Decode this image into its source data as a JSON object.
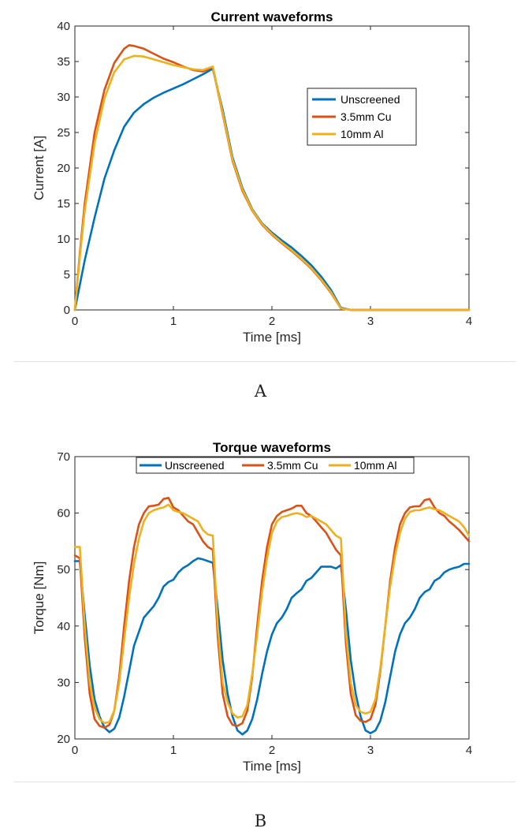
{
  "chart_data": [
    {
      "type": "line",
      "title": "Current waveforms",
      "xlabel": "Time [ms]",
      "ylabel": "Current [A]",
      "xlim": [
        0,
        4
      ],
      "ylim": [
        0,
        40
      ],
      "xticks": [
        0,
        1,
        2,
        3,
        4
      ],
      "yticks": [
        0,
        5,
        10,
        15,
        20,
        25,
        30,
        35,
        40
      ],
      "legend_position": "right",
      "caption": "A",
      "series": [
        {
          "name": "Unscreened",
          "color": "#0072BD",
          "x": [
            0,
            0.1,
            0.2,
            0.3,
            0.4,
            0.5,
            0.6,
            0.7,
            0.8,
            0.9,
            1.0,
            1.1,
            1.2,
            1.3,
            1.4,
            1.5,
            1.6,
            1.7,
            1.8,
            1.9,
            2.0,
            2.1,
            2.2,
            2.3,
            2.4,
            2.5,
            2.6,
            2.7,
            2.8,
            3.0,
            3.5,
            4.0
          ],
          "y": [
            0,
            7,
            13,
            18.5,
            22.5,
            25.8,
            27.8,
            29.0,
            29.9,
            30.6,
            31.2,
            31.8,
            32.5,
            33.2,
            34.0,
            28.2,
            21.5,
            17.2,
            14.2,
            12.2,
            10.9,
            9.8,
            8.8,
            7.6,
            6.3,
            4.7,
            2.8,
            0.3,
            0,
            0,
            0,
            0
          ]
        },
        {
          "name": "3.5mm Cu",
          "color": "#D95319",
          "x": [
            0,
            0.05,
            0.1,
            0.2,
            0.3,
            0.4,
            0.5,
            0.55,
            0.6,
            0.7,
            0.8,
            0.9,
            1.0,
            1.1,
            1.2,
            1.3,
            1.4,
            1.5,
            1.6,
            1.7,
            1.8,
            1.9,
            2.0,
            2.1,
            2.2,
            2.3,
            2.4,
            2.5,
            2.6,
            2.7,
            2.8,
            3.0,
            3.5,
            4.0
          ],
          "y": [
            0,
            8,
            15,
            25.0,
            31.0,
            34.8,
            36.8,
            37.3,
            37.2,
            36.8,
            36.1,
            35.4,
            34.9,
            34.3,
            33.8,
            33.6,
            34.2,
            27.6,
            21.0,
            16.8,
            14.0,
            12.0,
            10.6,
            9.4,
            8.3,
            7.1,
            5.8,
            4.2,
            2.4,
            0.2,
            0,
            0,
            0,
            0
          ]
        },
        {
          "name": "10mm Al",
          "color": "#EDB120",
          "x": [
            0,
            0.05,
            0.1,
            0.2,
            0.3,
            0.4,
            0.5,
            0.6,
            0.7,
            0.8,
            0.9,
            1.0,
            1.1,
            1.2,
            1.3,
            1.4,
            1.5,
            1.6,
            1.7,
            1.8,
            1.9,
            2.0,
            2.1,
            2.2,
            2.3,
            2.4,
            2.5,
            2.6,
            2.7,
            2.8,
            3.0,
            3.5,
            4.0
          ],
          "y": [
            0,
            7.5,
            14,
            23.5,
            29.8,
            33.5,
            35.3,
            35.8,
            35.7,
            35.3,
            34.9,
            34.5,
            34.2,
            33.9,
            33.8,
            34.3,
            27.8,
            21.2,
            17.0,
            14.1,
            12.1,
            10.7,
            9.5,
            8.4,
            7.2,
            5.9,
            4.3,
            2.5,
            0.2,
            0,
            0,
            0,
            0
          ]
        }
      ]
    },
    {
      "type": "line",
      "title": "Torque waveforms",
      "xlabel": "Time [ms]",
      "ylabel": "Torque [Nm]",
      "xlim": [
        0,
        4
      ],
      "ylim": [
        20,
        70
      ],
      "xticks": [
        0,
        1,
        2,
        3,
        4
      ],
      "yticks": [
        20,
        30,
        40,
        50,
        60,
        70
      ],
      "legend_position": "top",
      "caption": "B",
      "series": [
        {
          "name": "Unscreened",
          "color": "#0072BD",
          "x": [
            0,
            0.05,
            0.1,
            0.15,
            0.2,
            0.25,
            0.3,
            0.35,
            0.4,
            0.45,
            0.5,
            0.55,
            0.6,
            0.65,
            0.7,
            0.75,
            0.8,
            0.85,
            0.9,
            0.95,
            1.0,
            1.05,
            1.1,
            1.15,
            1.2,
            1.25,
            1.3,
            1.35,
            1.4,
            1.45,
            1.5,
            1.55,
            1.6,
            1.65,
            1.7,
            1.75,
            1.8,
            1.85,
            1.9,
            1.95,
            2.0,
            2.05,
            2.1,
            2.15,
            2.2,
            2.25,
            2.3,
            2.35,
            2.4,
            2.45,
            2.5,
            2.55,
            2.6,
            2.65,
            2.7,
            2.75,
            2.8,
            2.85,
            2.9,
            2.95,
            3.0,
            3.05,
            3.1,
            3.15,
            3.2,
            3.25,
            3.3,
            3.35,
            3.4,
            3.45,
            3.5,
            3.55,
            3.6,
            3.65,
            3.7,
            3.75,
            3.8,
            3.85,
            3.9,
            3.95,
            4.0
          ],
          "y": [
            51.5,
            51.5,
            42,
            33,
            27,
            24,
            22,
            21.2,
            21.8,
            23.8,
            27.5,
            32,
            36.5,
            39,
            41.5,
            42.5,
            43.5,
            45,
            47,
            47.8,
            48.2,
            49.5,
            50.3,
            50.8,
            51.5,
            52,
            51.8,
            51.5,
            51.2,
            43,
            34,
            28,
            24,
            21.5,
            20.8,
            21.5,
            23.5,
            27,
            31.5,
            35.5,
            38.5,
            40.5,
            41.5,
            43,
            45,
            45.8,
            46.5,
            48,
            48.5,
            49.5,
            50.5,
            50.5,
            50.5,
            50.2,
            50.8,
            43,
            34,
            28,
            24,
            21.5,
            21,
            21.5,
            23.2,
            26.5,
            31,
            35.5,
            38.5,
            40.5,
            41.5,
            43,
            45,
            46,
            46.5,
            48,
            48.5,
            49.5,
            50,
            50.3,
            50.5,
            51,
            51
          ]
        },
        {
          "name": "3.5mm Cu",
          "color": "#D95319",
          "x": [
            0,
            0.05,
            0.1,
            0.15,
            0.2,
            0.25,
            0.3,
            0.35,
            0.4,
            0.45,
            0.5,
            0.55,
            0.6,
            0.65,
            0.7,
            0.75,
            0.8,
            0.85,
            0.9,
            0.95,
            1.0,
            1.05,
            1.1,
            1.15,
            1.2,
            1.25,
            1.3,
            1.35,
            1.4,
            1.45,
            1.5,
            1.55,
            1.6,
            1.65,
            1.7,
            1.75,
            1.8,
            1.85,
            1.9,
            1.95,
            2.0,
            2.05,
            2.1,
            2.15,
            2.2,
            2.25,
            2.3,
            2.35,
            2.4,
            2.45,
            2.5,
            2.55,
            2.6,
            2.65,
            2.7,
            2.75,
            2.8,
            2.85,
            2.9,
            2.95,
            3.0,
            3.05,
            3.1,
            3.15,
            3.2,
            3.25,
            3.3,
            3.35,
            3.4,
            3.45,
            3.5,
            3.55,
            3.6,
            3.65,
            3.7,
            3.75,
            3.8,
            3.85,
            3.9,
            3.95,
            4.0
          ],
          "y": [
            52.5,
            52,
            38,
            28,
            23.5,
            22.3,
            22,
            22.5,
            25,
            31,
            40,
            48,
            54,
            58,
            60,
            61.2,
            61.3,
            61.5,
            62.5,
            62.7,
            61,
            60.5,
            59.5,
            58.5,
            58,
            56.5,
            55,
            54,
            53.5,
            38,
            28,
            24,
            22.5,
            22.3,
            22.8,
            25,
            31,
            40,
            48,
            54,
            58,
            59.5,
            60.2,
            60.5,
            60.8,
            61.3,
            61.3,
            60,
            59.5,
            58.5,
            57.5,
            56.5,
            55,
            53.5,
            52.5,
            37,
            28,
            24.2,
            23.2,
            23,
            23.5,
            26,
            32,
            40,
            48,
            54,
            58,
            60,
            61,
            61.2,
            61.2,
            62.3,
            62.5,
            61,
            60,
            59.5,
            58.5,
            57.8,
            57,
            56,
            55
          ]
        },
        {
          "name": "10mm Al",
          "color": "#EDB120",
          "x": [
            0,
            0.05,
            0.1,
            0.15,
            0.2,
            0.25,
            0.3,
            0.35,
            0.4,
            0.45,
            0.5,
            0.55,
            0.6,
            0.65,
            0.7,
            0.75,
            0.8,
            0.85,
            0.9,
            0.95,
            1.0,
            1.05,
            1.1,
            1.15,
            1.2,
            1.25,
            1.3,
            1.35,
            1.4,
            1.45,
            1.5,
            1.55,
            1.6,
            1.65,
            1.7,
            1.75,
            1.8,
            1.85,
            1.9,
            1.95,
            2.0,
            2.05,
            2.1,
            2.15,
            2.2,
            2.25,
            2.3,
            2.35,
            2.4,
            2.45,
            2.5,
            2.55,
            2.6,
            2.65,
            2.7,
            2.75,
            2.8,
            2.85,
            2.9,
            2.95,
            3.0,
            3.05,
            3.1,
            3.15,
            3.2,
            3.25,
            3.3,
            3.35,
            3.4,
            3.45,
            3.5,
            3.55,
            3.6,
            3.65,
            3.7,
            3.75,
            3.8,
            3.85,
            3.9,
            3.95,
            4.0
          ],
          "y": [
            54,
            54,
            40,
            30,
            25.5,
            23.5,
            22.8,
            23,
            25,
            30,
            37.5,
            45,
            51,
            55.5,
            58.5,
            60,
            60.5,
            60.8,
            61,
            61.5,
            60.5,
            60.2,
            60,
            59.5,
            59,
            58.5,
            57,
            56.2,
            56,
            40,
            30,
            26.5,
            24.5,
            23.8,
            24,
            26,
            31.5,
            38.5,
            46,
            52,
            56.5,
            58.5,
            59.3,
            59.5,
            59.8,
            60,
            59.8,
            59.3,
            59.5,
            59,
            58.5,
            58,
            57,
            56,
            55.5,
            39,
            30,
            26,
            24.8,
            24.5,
            24.8,
            27,
            32.5,
            40,
            47,
            52.5,
            56.5,
            59,
            60.2,
            60.5,
            60.5,
            60.8,
            61,
            60.7,
            60.5,
            60,
            59.5,
            59,
            58.5,
            57.5,
            56
          ]
        }
      ]
    }
  ]
}
